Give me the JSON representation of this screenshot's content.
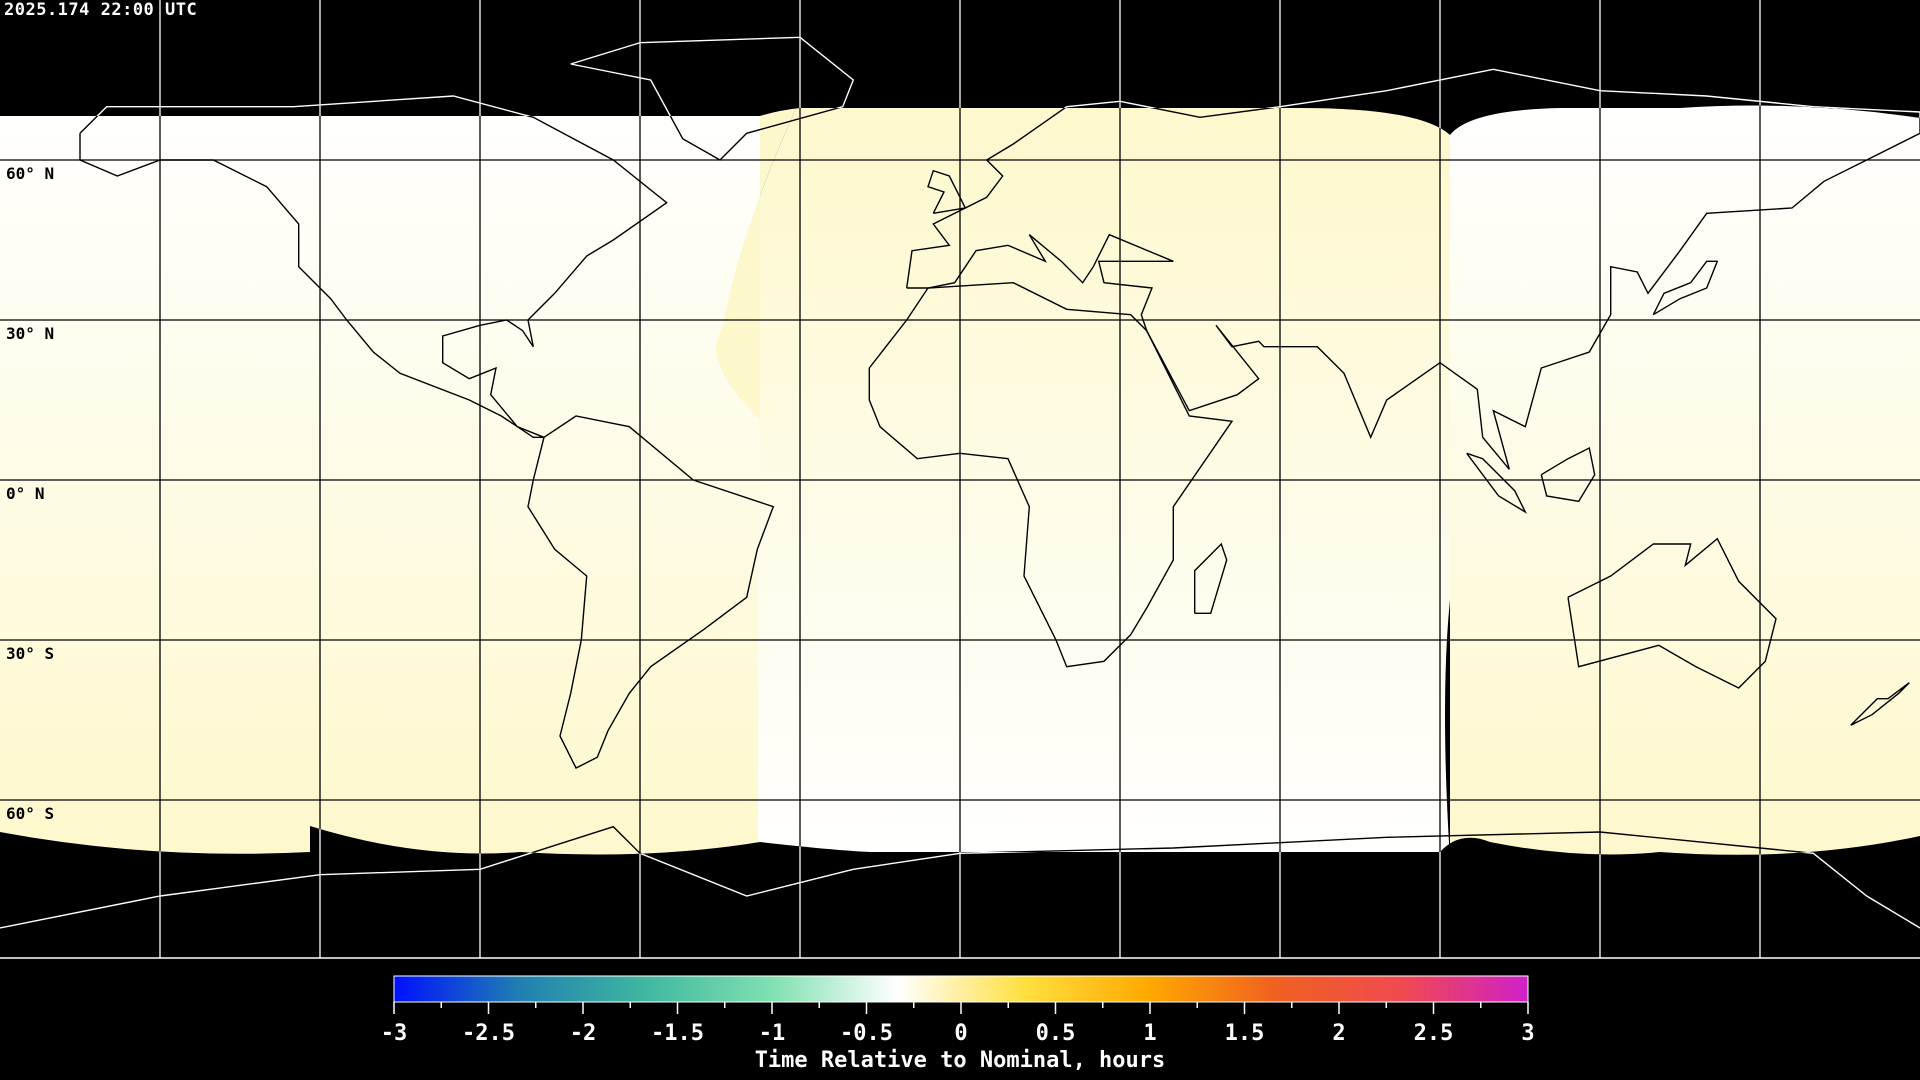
{
  "timestamp": "2025.174 22:00 UTC",
  "lat_labels": [
    "60° N",
    "30° N",
    "0° N",
    "30° S",
    "60° S"
  ],
  "colorbar": {
    "title": "Time Relative to Nominal, hours",
    "range": [
      -3,
      3
    ],
    "tick_labels": [
      "-3",
      "-2.5",
      "-2",
      "-1.5",
      "-1",
      "-0.5",
      "0",
      "0.5",
      "1",
      "1.5",
      "2",
      "2.5",
      "3"
    ],
    "colors": [
      "#0010ff",
      "#2080b0",
      "#40b8a0",
      "#80e0b0",
      "#ffffff",
      "#ffe040",
      "#ffa800",
      "#f06020",
      "#f04a50",
      "#d020c8"
    ]
  },
  "map": {
    "projection": "equirectangular",
    "graticule_step_deg": 30,
    "night_color": "#000000",
    "value_color_light": "#fdf8cc",
    "value_color_white": "#ffffff"
  }
}
